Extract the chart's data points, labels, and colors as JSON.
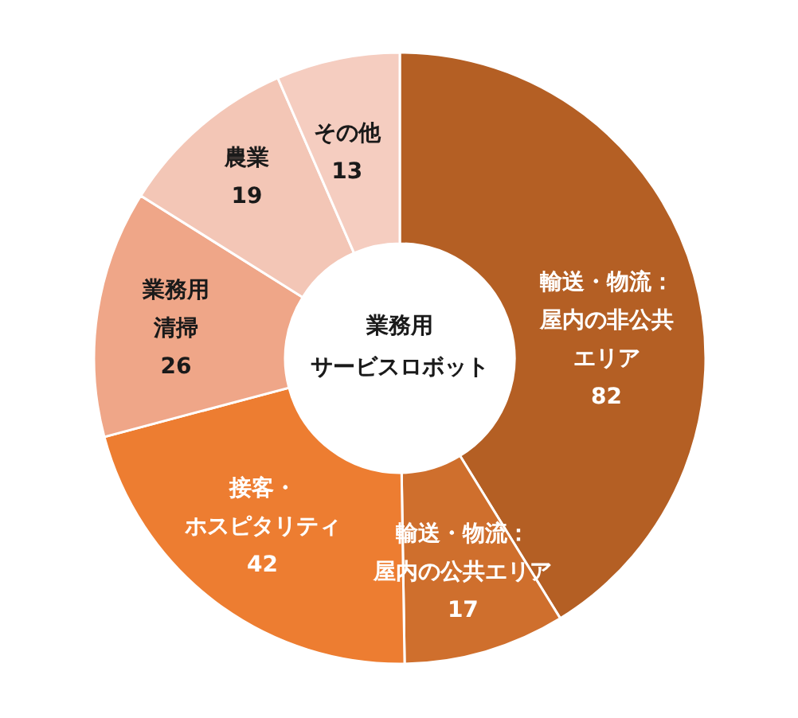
{
  "chart_data": {
    "type": "donut",
    "title": "業務用サービスロボット",
    "categories": [
      "輸送・物流：屋内の非公共エリア",
      "輸送・物流：屋内の公共エリア",
      "接客・ホスピタリティ",
      "業務用清掃",
      "農業",
      "その他"
    ],
    "values": [
      82,
      17,
      42,
      26,
      19,
      13
    ],
    "colors": [
      "#b45f24",
      "#cf6f2d",
      "#ed7d31",
      "#efa688",
      "#f3c6b6",
      "#f5cdc0"
    ],
    "data_labels": true
  }
}
